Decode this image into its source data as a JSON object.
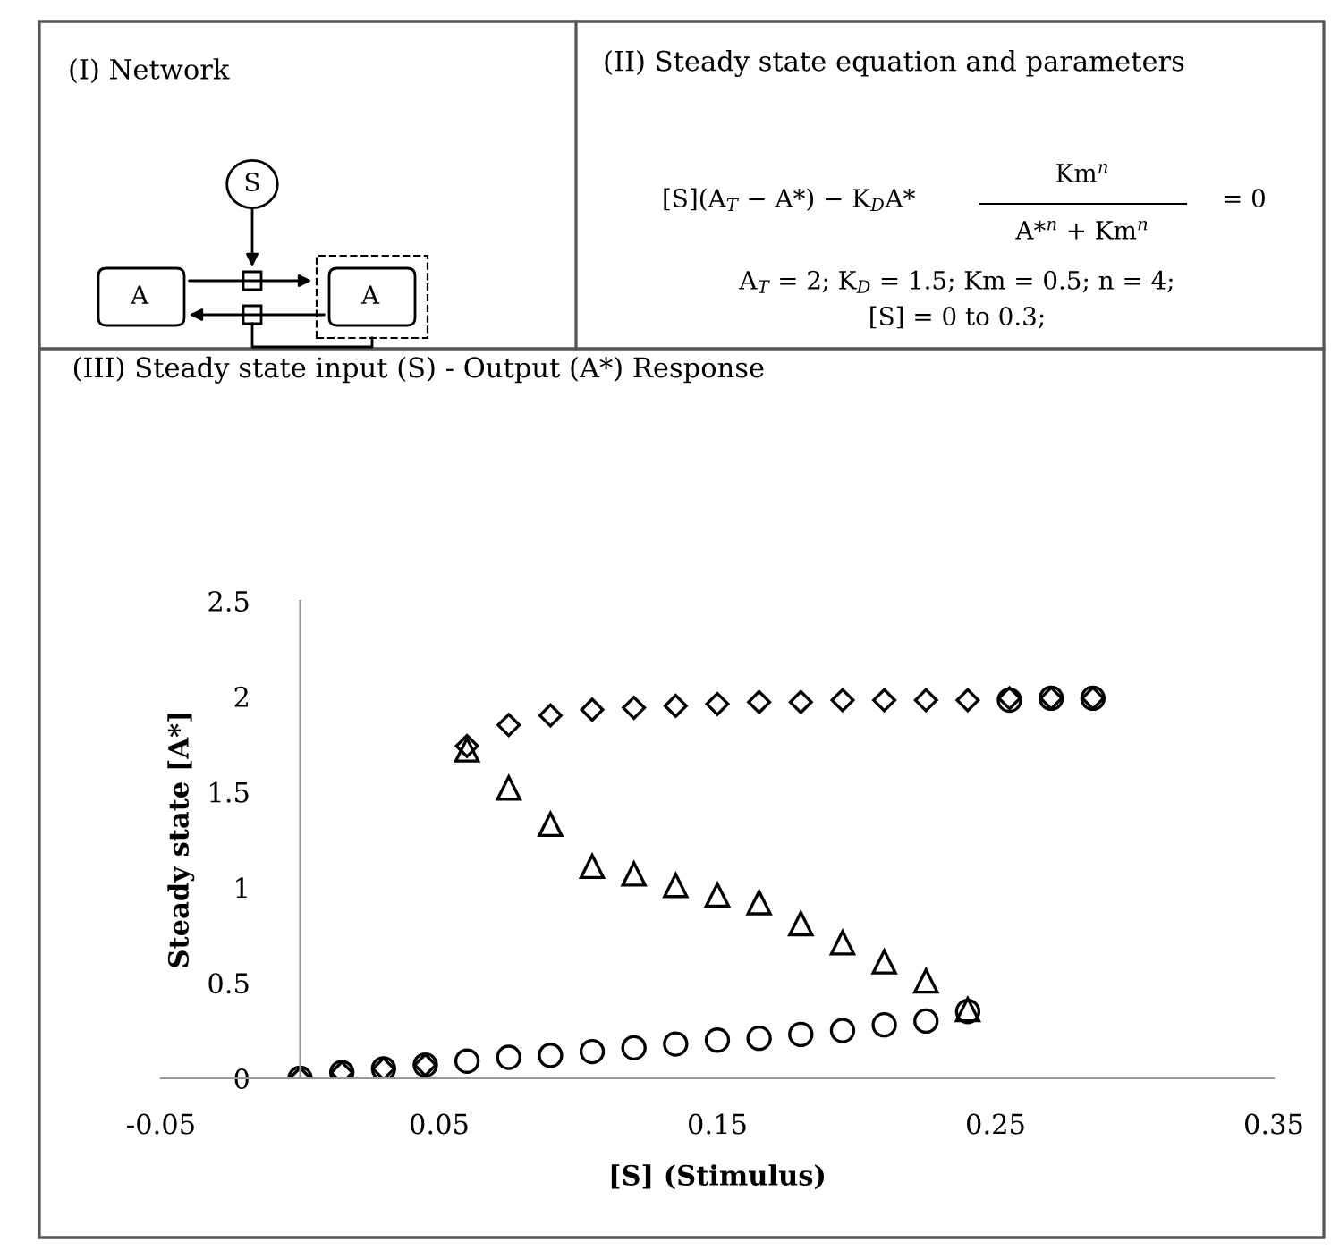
{
  "chart_data": {
    "type": "scatter",
    "title": "(III) Steady state input (S) - Output (A*) Response",
    "xlabel": "[S] (Stimulus)",
    "ylabel": "Steady state [A*]",
    "annotations": [
      "(I) Network",
      "(II) Steady state equation and parameters",
      "S",
      "A",
      "A",
      "[S](A$_{T}$ − A*) − K$_{D}$A*",
      "Km$^{n}$",
      "A*$^{n}$ + Km$^{n}$",
      "= 0",
      "A$_{T}$ = 2; K$_{D}$ = 1.5; Km = 0.5; n = 4;",
      "[S] = 0 to 0.3;"
    ],
    "x": [
      0,
      0.015,
      0.03,
      0.045,
      0.06,
      0.075,
      0.09,
      0.105,
      0.12,
      0.135,
      0.15,
      0.165,
      0.18,
      0.195,
      0.21,
      0.225,
      0.24,
      0.255,
      0.27,
      0.285
    ],
    "series": [
      {
        "color": "#000000",
        "marker": "circle",
        "values": [
          0,
          0.03,
          0.05,
          0.07,
          0.09,
          0.11,
          0.12,
          0.14,
          0.16,
          0.18,
          0.2,
          0.21,
          0.23,
          0.25,
          0.28,
          0.3,
          0.35,
          1.98,
          1.99,
          1.99
        ]
      },
      {
        "color": "#000000",
        "marker": "triangle",
        "values": [
          null,
          null,
          null,
          null,
          1.72,
          1.52,
          1.33,
          1.11,
          1.07,
          1.01,
          0.96,
          0.92,
          0.81,
          0.71,
          0.61,
          0.51,
          0.36,
          null,
          null,
          null
        ]
      },
      {
        "color": "#000000",
        "marker": "diamond",
        "values": [
          0,
          0.03,
          0.05,
          0.07,
          1.74,
          1.85,
          1.9,
          1.93,
          1.94,
          1.95,
          1.96,
          1.97,
          1.97,
          1.98,
          1.98,
          1.98,
          1.98,
          1.99,
          1.99,
          1.99
        ]
      }
    ],
    "xlim": [
      -0.05,
      0.35
    ],
    "xticks": [
      -0.05,
      0.05,
      0.15,
      0.25,
      0.35
    ],
    "ylim": [
      0,
      2.5
    ],
    "yticks": [
      0,
      0.5,
      1,
      1.5,
      2,
      2.5
    ],
    "grid": false,
    "legend": false
  }
}
